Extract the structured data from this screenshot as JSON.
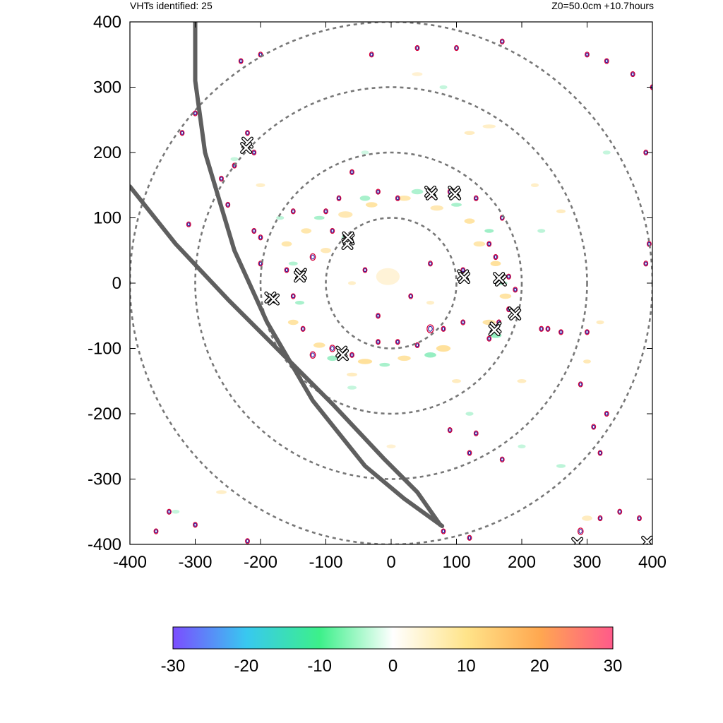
{
  "header": {
    "vht_count": "VHTs identified: 25",
    "run_info": "Z0=50.0cm  +10.7hours"
  },
  "chart_data": {
    "type": "heatmap",
    "x_ticks": [
      "-400",
      "-300",
      "-200",
      "-100",
      "0",
      "100",
      "200",
      "300",
      "400"
    ],
    "y_ticks": [
      "400",
      "300",
      "200",
      "100",
      "0",
      "-100",
      "-200",
      "-300",
      "-400"
    ],
    "xlim": [
      -400,
      400
    ],
    "ylim": [
      -400,
      400
    ],
    "range_rings_radius": [
      100,
      200,
      300,
      400
    ],
    "colorbar": {
      "min": -30,
      "max": 30,
      "ticks": [
        "-30",
        "-20",
        "-10",
        "0",
        "10",
        "20",
        "30"
      ],
      "colors": [
        "#7b4dff",
        "#38c8f0",
        "#3cf08a",
        "#ffffff",
        "#ffe48a",
        "#ffa850",
        "#ff5a8a"
      ]
    },
    "tracks": [
      {
        "points": [
          [
            -300,
            400
          ],
          [
            -300,
            310
          ],
          [
            -285,
            200
          ],
          [
            -240,
            50
          ],
          [
            -190,
            -60
          ],
          [
            -120,
            -180
          ],
          [
            -40,
            -280
          ],
          [
            20,
            -330
          ],
          [
            78,
            -372
          ]
        ]
      },
      {
        "points": [
          [
            -400,
            148
          ],
          [
            -330,
            60
          ],
          [
            -250,
            -25
          ],
          [
            -170,
            -105
          ],
          [
            -90,
            -185
          ],
          [
            -10,
            -270
          ],
          [
            40,
            -320
          ],
          [
            75,
            -370
          ]
        ]
      }
    ],
    "vht_markers": [
      [
        -220,
        215
      ],
      [
        -222,
        207
      ],
      [
        60,
        140
      ],
      [
        96,
        140
      ],
      [
        -65,
        67
      ],
      [
        -67,
        60
      ],
      [
        -138,
        14
      ],
      [
        -185,
        -22
      ],
      [
        110,
        12
      ],
      [
        168,
        4
      ],
      [
        188,
        -45
      ],
      [
        160,
        -68
      ],
      [
        -76,
        -105
      ],
      [
        392,
        -396
      ],
      [
        285,
        -398
      ],
      [
        -66,
        70
      ],
      [
        112,
        8
      ],
      [
        62,
        136
      ],
      [
        -180,
        -25
      ],
      [
        158,
        -72
      ],
      [
        98,
        136
      ],
      [
        -74,
        -110
      ],
      [
        190,
        -48
      ],
      [
        165,
        8
      ],
      [
        -140,
        10
      ]
    ],
    "positive_blobs": [
      [
        -5,
        10,
        18,
        13,
        0.22
      ],
      [
        -70,
        105,
        11,
        5,
        0.42
      ],
      [
        -30,
        120,
        9,
        4,
        0.5
      ],
      [
        20,
        130,
        10,
        4,
        0.45
      ],
      [
        70,
        115,
        10,
        4,
        0.42
      ],
      [
        120,
        95,
        8,
        4,
        0.5
      ],
      [
        135,
        60,
        9,
        4,
        0.45
      ],
      [
        160,
        30,
        8,
        4,
        0.55
      ],
      [
        175,
        -20,
        9,
        4,
        0.5
      ],
      [
        150,
        -60,
        10,
        4,
        0.5
      ],
      [
        80,
        -100,
        11,
        5,
        0.55
      ],
      [
        20,
        -115,
        10,
        4,
        0.5
      ],
      [
        -40,
        -120,
        11,
        4,
        0.55
      ],
      [
        -110,
        -95,
        9,
        4,
        0.5
      ],
      [
        -150,
        -60,
        8,
        4,
        0.5
      ],
      [
        -160,
        60,
        8,
        4,
        0.45
      ],
      [
        -130,
        80,
        8,
        4,
        0.45
      ],
      [
        -100,
        50,
        8,
        4,
        0.4
      ],
      [
        100,
        -150,
        7,
        3,
        0.35
      ],
      [
        -60,
        -140,
        8,
        3,
        0.35
      ],
      [
        150,
        240,
        10,
        3,
        0.3
      ],
      [
        200,
        -150,
        7,
        3,
        0.35
      ],
      [
        300,
        -120,
        6,
        3,
        0.4
      ],
      [
        320,
        -60,
        6,
        3,
        0.35
      ],
      [
        -200,
        150,
        7,
        3,
        0.3
      ],
      [
        40,
        320,
        8,
        3,
        0.25
      ],
      [
        -260,
        -320,
        8,
        3,
        0.3
      ],
      [
        300,
        -360,
        8,
        4,
        0.35
      ],
      [
        260,
        110,
        7,
        3,
        0.35
      ],
      [
        220,
        150,
        6,
        3,
        0.3
      ],
      [
        -60,
        0,
        6,
        3,
        0.3
      ],
      [
        60,
        -30,
        6,
        3,
        0.3
      ],
      [
        0,
        -250,
        7,
        3,
        0.25
      ],
      [
        -140,
        -140,
        7,
        3,
        0.35
      ],
      [
        120,
        230,
        8,
        3,
        0.35
      ]
    ],
    "negative_blobs": [
      [
        -40,
        130,
        8,
        4,
        0.45
      ],
      [
        40,
        140,
        9,
        4,
        0.42
      ],
      [
        100,
        120,
        8,
        3,
        0.45
      ],
      [
        150,
        80,
        7,
        3,
        0.5
      ],
      [
        170,
        0,
        8,
        3,
        0.45
      ],
      [
        160,
        -80,
        9,
        4,
        0.55
      ],
      [
        60,
        -110,
        9,
        4,
        0.55
      ],
      [
        -10,
        -125,
        8,
        3,
        0.45
      ],
      [
        -90,
        -115,
        8,
        4,
        0.5
      ],
      [
        -140,
        -30,
        7,
        3,
        0.45
      ],
      [
        -150,
        30,
        7,
        3,
        0.4
      ],
      [
        -110,
        100,
        8,
        3,
        0.45
      ],
      [
        -70,
        70,
        6,
        3,
        0.55
      ],
      [
        -170,
        100,
        6,
        3,
        0.35
      ],
      [
        120,
        -200,
        6,
        3,
        0.35
      ],
      [
        260,
        -280,
        7,
        3,
        0.35
      ],
      [
        80,
        300,
        6,
        3,
        0.3
      ],
      [
        -240,
        190,
        6,
        3,
        0.3
      ],
      [
        -330,
        -350,
        6,
        3,
        0.3
      ],
      [
        330,
        200,
        6,
        3,
        0.3
      ],
      [
        -60,
        -160,
        7,
        3,
        0.3
      ],
      [
        -40,
        200,
        6,
        3,
        0.25
      ],
      [
        230,
        80,
        6,
        3,
        0.35
      ],
      [
        200,
        -250,
        6,
        3,
        0.3
      ]
    ],
    "contour_loops": [
      [
        -220,
        230,
        3
      ],
      [
        -210,
        200,
        3
      ],
      [
        -240,
        180,
        3
      ],
      [
        -260,
        160,
        3
      ],
      [
        -300,
        260,
        3
      ],
      [
        -310,
        90,
        3
      ],
      [
        -210,
        80,
        3
      ],
      [
        -200,
        30,
        3
      ],
      [
        -150,
        -20,
        3
      ],
      [
        -120,
        40,
        4
      ],
      [
        -90,
        80,
        3
      ],
      [
        -80,
        130,
        3
      ],
      [
        -100,
        110,
        3
      ],
      [
        -150,
        110,
        3
      ],
      [
        -160,
        20,
        3
      ],
      [
        -135,
        -70,
        3
      ],
      [
        -120,
        -110,
        4
      ],
      [
        -90,
        -100,
        4
      ],
      [
        -60,
        -110,
        3
      ],
      [
        -20,
        -90,
        3
      ],
      [
        10,
        -90,
        3
      ],
      [
        40,
        -95,
        3
      ],
      [
        60,
        -70,
        5
      ],
      [
        80,
        -70,
        3
      ],
      [
        10,
        130,
        3
      ],
      [
        -20,
        140,
        3
      ],
      [
        60,
        135,
        3
      ],
      [
        90,
        140,
        3
      ],
      [
        130,
        130,
        3
      ],
      [
        170,
        100,
        3
      ],
      [
        150,
        60,
        3
      ],
      [
        160,
        40,
        3
      ],
      [
        180,
        10,
        3
      ],
      [
        190,
        -10,
        3
      ],
      [
        180,
        -40,
        3
      ],
      [
        165,
        -60,
        3
      ],
      [
        150,
        -85,
        3
      ],
      [
        110,
        -60,
        3
      ],
      [
        110,
        20,
        3
      ],
      [
        -60,
        170,
        3
      ],
      [
        -30,
        350,
        3
      ],
      [
        40,
        360,
        3
      ],
      [
        100,
        360,
        3
      ],
      [
        170,
        370,
        3
      ],
      [
        300,
        350,
        3
      ],
      [
        330,
        340,
        3
      ],
      [
        370,
        320,
        3
      ],
      [
        400,
        300,
        3
      ],
      [
        390,
        200,
        3
      ],
      [
        395,
        60,
        3
      ],
      [
        390,
        30,
        3
      ],
      [
        240,
        -70,
        3
      ],
      [
        260,
        -75,
        3
      ],
      [
        300,
        -75,
        3
      ],
      [
        290,
        -155,
        3
      ],
      [
        330,
        -200,
        3
      ],
      [
        320,
        -260,
        3
      ],
      [
        310,
        -220,
        3
      ],
      [
        130,
        -230,
        3
      ],
      [
        120,
        -260,
        3
      ],
      [
        90,
        -225,
        3
      ],
      [
        170,
        -270,
        3
      ],
      [
        290,
        -380,
        4
      ],
      [
        320,
        -360,
        3
      ],
      [
        350,
        -350,
        3
      ],
      [
        380,
        -360,
        3
      ],
      [
        120,
        -390,
        3
      ],
      [
        80,
        -380,
        3
      ],
      [
        -340,
        -350,
        3
      ],
      [
        -360,
        -380,
        3
      ],
      [
        -300,
        -370,
        3
      ],
      [
        -220,
        -395,
        3
      ],
      [
        -200,
        70,
        3
      ],
      [
        -320,
        230,
        3
      ],
      [
        -230,
        340,
        3
      ],
      [
        -200,
        350,
        3
      ],
      [
        -250,
        120,
        3
      ],
      [
        230,
        -70,
        3
      ],
      [
        -40,
        20,
        3
      ],
      [
        30,
        -20,
        3
      ],
      [
        -20,
        -50,
        3
      ],
      [
        60,
        30,
        3
      ]
    ]
  }
}
